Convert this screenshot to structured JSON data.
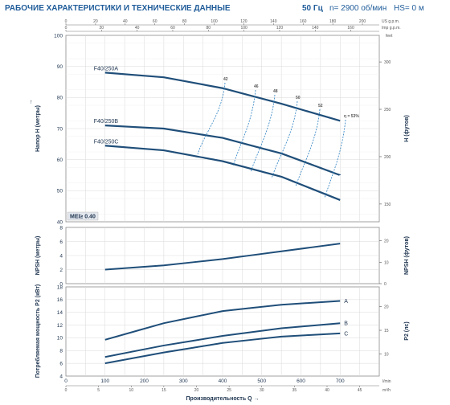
{
  "header": {
    "title": "РАБОЧИЕ ХАРАКТЕРИСТИКИ И ТЕХНИЧЕСКИЕ ДАННЫЕ",
    "freq": "50 Гц",
    "speed": "n= 2900 об/мин",
    "hs": "HS= 0 м"
  },
  "colors": {
    "curve": "#1f4e79",
    "grid": "#d9d9d9",
    "accent": "#1f5c99"
  },
  "chart_data": [
    {
      "type": "line",
      "panel": "head",
      "ylabel": "Напор H (метры)",
      "y2label": "H (футов)",
      "ylim": [
        40,
        100
      ],
      "y_ticks": [
        40,
        50,
        60,
        70,
        80,
        90,
        100
      ],
      "y2_ticks": [
        "150",
        "200",
        "250",
        "300"
      ],
      "y2_unit": "feet",
      "xlim": [
        0,
        800
      ],
      "top_axes": [
        {
          "unit": "US g.p.m.",
          "ticks": [
            "0",
            "20",
            "40",
            "60",
            "80",
            "100",
            "120",
            "140",
            "160",
            "180",
            "200"
          ]
        },
        {
          "unit": "Imp g.p.m.",
          "ticks": [
            "0",
            "20",
            "40",
            "60",
            "80",
            "100",
            "120",
            "140",
            "160"
          ]
        }
      ],
      "mei": "MEI≥ 0.40",
      "series": [
        {
          "name": "F40/250A",
          "x": [
            100,
            250,
            400,
            550,
            700
          ],
          "y": [
            88,
            86.5,
            83,
            78,
            72.5
          ]
        },
        {
          "name": "F40/250B",
          "x": [
            100,
            250,
            400,
            550,
            700
          ],
          "y": [
            71,
            70,
            67,
            62,
            55
          ]
        },
        {
          "name": "F40/250C",
          "x": [
            100,
            250,
            400,
            550,
            700
          ],
          "y": [
            64.5,
            63,
            59.5,
            54.5,
            47
          ]
        }
      ],
      "efficiency_labels": [
        "42",
        "46",
        "48",
        "50",
        "52",
        "η = 53%"
      ]
    },
    {
      "type": "line",
      "panel": "npsh",
      "ylabel": "NPSH (метры)",
      "y2label": "NPSH (футов)",
      "ylim": [
        0,
        8
      ],
      "y_ticks": [
        0,
        2,
        4,
        6,
        8
      ],
      "y2_ticks": [
        "0",
        "10",
        "20"
      ],
      "series": [
        {
          "name": "",
          "x": [
            100,
            250,
            400,
            550,
            700
          ],
          "y": [
            2.0,
            2.6,
            3.5,
            4.6,
            5.7
          ]
        }
      ]
    },
    {
      "type": "line",
      "panel": "power",
      "ylabel": "Потребляемая мощность P2 (кВт)",
      "y2label": "P2 (лс)",
      "ylim": [
        4,
        18
      ],
      "y_ticks": [
        4,
        6,
        8,
        10,
        12,
        14,
        16,
        18
      ],
      "y2_ticks": [
        "10",
        "15",
        "20"
      ],
      "xlabel": "Производительность Q",
      "x_ticks": [
        0,
        100,
        200,
        300,
        400,
        500,
        600,
        700
      ],
      "x_unit": "l/min",
      "bottom_axes": [
        {
          "unit": "m³/h",
          "ticks": [
            "0",
            "5",
            "10",
            "15",
            "20",
            "25",
            "30",
            "35",
            "40",
            "45"
          ]
        }
      ],
      "series": [
        {
          "name": "A",
          "x": [
            100,
            250,
            400,
            550,
            700
          ],
          "y": [
            9.7,
            12.3,
            14.2,
            15.2,
            15.8
          ]
        },
        {
          "name": "B",
          "x": [
            100,
            250,
            400,
            550,
            700
          ],
          "y": [
            7.0,
            8.8,
            10.3,
            11.5,
            12.3
          ]
        },
        {
          "name": "C",
          "x": [
            100,
            250,
            400,
            550,
            700
          ],
          "y": [
            6.0,
            7.7,
            9.2,
            10.2,
            10.7
          ]
        }
      ]
    }
  ]
}
